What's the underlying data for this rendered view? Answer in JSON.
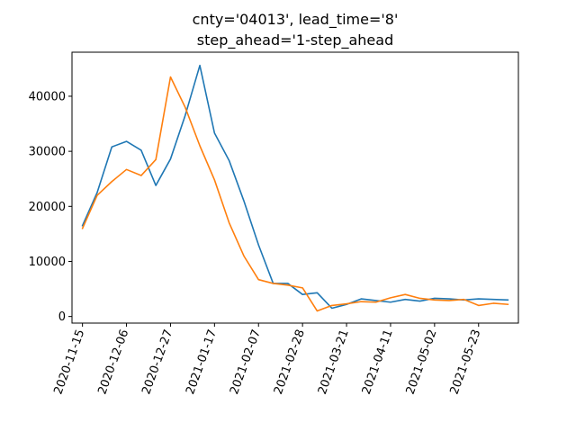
{
  "chart_data": {
    "type": "line",
    "title_line1": "cnty='04013', lead_time='8'",
    "title_line2": "step_ahead='1-step_ahead",
    "xlabel": "",
    "ylabel": "",
    "grid": false,
    "x": [
      "2020-11-15",
      "2020-11-22",
      "2020-11-29",
      "2020-12-06",
      "2020-12-13",
      "2020-12-20",
      "2020-12-27",
      "2021-01-03",
      "2021-01-10",
      "2021-01-17",
      "2021-01-24",
      "2021-01-31",
      "2021-02-07",
      "2021-02-14",
      "2021-02-21",
      "2021-02-28",
      "2021-03-07",
      "2021-03-14",
      "2021-03-21",
      "2021-03-28",
      "2021-04-04",
      "2021-04-11",
      "2021-04-18",
      "2021-04-25",
      "2021-05-02",
      "2021-05-09",
      "2021-05-16",
      "2021-05-23",
      "2021-05-30",
      "2021-06-06"
    ],
    "series": [
      {
        "color": "#1f77b4",
        "values": [
          16500,
          22500,
          30800,
          31800,
          30200,
          23800,
          28600,
          36500,
          45600,
          33300,
          28300,
          21000,
          13000,
          6000,
          6000,
          4000,
          4300,
          1500,
          2200,
          3200,
          2900,
          2600,
          3100,
          2800,
          3300,
          3200,
          3000,
          3200,
          3100,
          3000
        ]
      },
      {
        "color": "#ff7f0e",
        "values": [
          16000,
          22000,
          24500,
          26700,
          25600,
          28500,
          43500,
          38000,
          31000,
          24800,
          17000,
          11000,
          6700,
          6000,
          5700,
          5200,
          1000,
          2000,
          2300,
          2700,
          2600,
          3400,
          4000,
          3300,
          3000,
          2900,
          3100,
          2000,
          2400,
          2200
        ]
      }
    ],
    "xticks": [
      "2020-11-15",
      "2020-12-06",
      "2020-12-27",
      "2021-01-17",
      "2021-02-07",
      "2021-02-28",
      "2021-03-21",
      "2021-04-11",
      "2021-05-02",
      "2021-05-23"
    ],
    "yticks": [
      0,
      10000,
      20000,
      30000,
      40000
    ],
    "xlim": [
      "2020-11-10",
      "2021-06-11"
    ],
    "ylim": [
      -1200,
      48000
    ]
  }
}
